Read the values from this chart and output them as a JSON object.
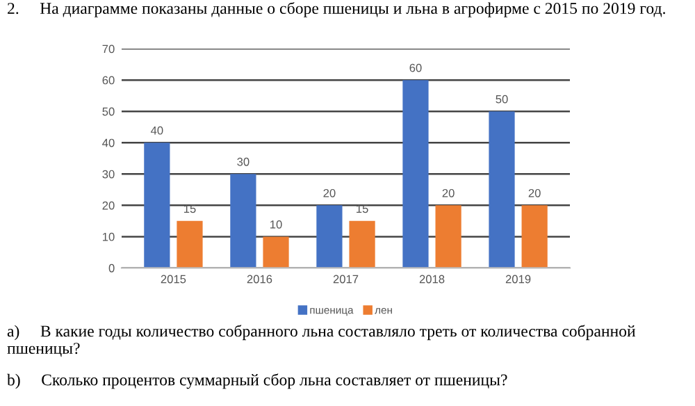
{
  "chart_data": {
    "type": "bar",
    "title": "2.     На диаграмме показаны данные о сборе пшеницы и льна в агрофирме с 2015 по 2019 год.",
    "categories": [
      "2015",
      "2016",
      "2017",
      "2018",
      "2019"
    ],
    "series": [
      {
        "name": "пшеница",
        "color": "#4472c4",
        "values": [
          40,
          30,
          20,
          60,
          50
        ]
      },
      {
        "name": "лен",
        "color": "#ed7d31",
        "values": [
          15,
          10,
          15,
          20,
          20
        ]
      }
    ],
    "ylim": [
      0,
      70
    ],
    "yticks": [
      0,
      10,
      20,
      30,
      40,
      50,
      60,
      70
    ],
    "grid": "y",
    "legend": "bottom",
    "data_labels": true,
    "annotations": [
      "a)     В какие годы количество собранного льна составляло треть от количества собранной пшеницы?",
      "b)     Сколько процентов суммарный сбор льна составляет от пшеницы?"
    ]
  }
}
